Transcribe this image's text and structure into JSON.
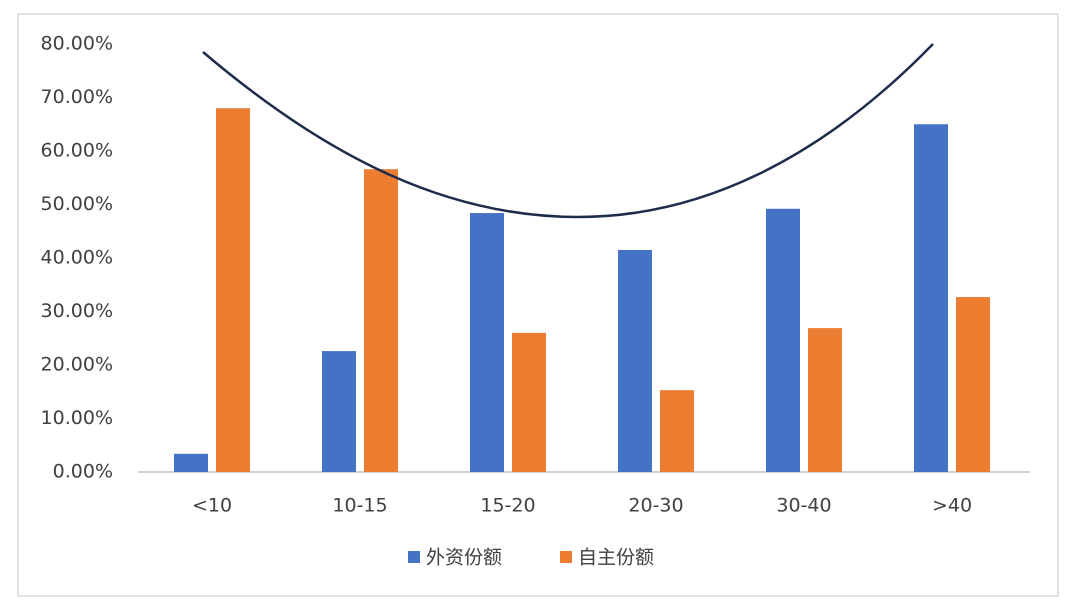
{
  "chart_data": {
    "type": "bar",
    "categories": [
      "<10",
      "10-15",
      "15-20",
      "20-30",
      "30-40",
      ">40"
    ],
    "series": [
      {
        "name": "外资份额",
        "color": "#4472c4",
        "values": [
          3.4,
          22.6,
          48.4,
          41.5,
          49.2,
          65.0
        ]
      },
      {
        "name": "自主份额",
        "color": "#ed7d31",
        "values": [
          68.0,
          56.6,
          26.0,
          15.3,
          26.9,
          32.7
        ]
      }
    ],
    "ylim": [
      0,
      80
    ],
    "yticks": [
      {
        "value": 0,
        "label": "0.00%"
      },
      {
        "value": 10,
        "label": "10.00%"
      },
      {
        "value": 20,
        "label": "20.00%"
      },
      {
        "value": 30,
        "label": "30.00%"
      },
      {
        "value": 40,
        "label": "40.00%"
      },
      {
        "value": 50,
        "label": "50.00%"
      },
      {
        "value": 60,
        "label": "60.00%"
      },
      {
        "value": 70,
        "label": "70.00%"
      },
      {
        "value": 80,
        "label": "80.00%"
      }
    ],
    "grid": false,
    "legend": "bottom"
  }
}
